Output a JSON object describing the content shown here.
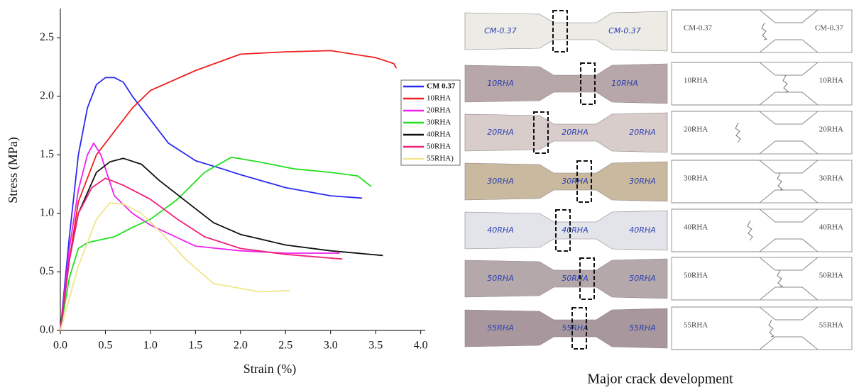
{
  "chart_data": {
    "type": "line",
    "xlabel": "Strain (%)",
    "ylabel": "Stress (MPa)",
    "xlim": [
      0,
      4.05
    ],
    "ylim": [
      0,
      2.75
    ],
    "xticks": [
      {
        "value": 0,
        "label": "0.0"
      },
      {
        "value": 0.5,
        "label": "0.5"
      },
      {
        "value": 1,
        "label": "1.0"
      },
      {
        "value": 1.5,
        "label": "1.5"
      },
      {
        "value": 2,
        "label": "2.0"
      },
      {
        "value": 2.5,
        "label": "2.5"
      },
      {
        "value": 3,
        "label": "3.0"
      },
      {
        "value": 3.5,
        "label": "3.5"
      },
      {
        "value": 4,
        "label": "4.0"
      }
    ],
    "yticks": [
      {
        "value": 0,
        "label": "0.0"
      },
      {
        "value": 0.5,
        "label": "0.5"
      },
      {
        "value": 1,
        "label": "1.0"
      },
      {
        "value": 1.5,
        "label": "1.5"
      },
      {
        "value": 2,
        "label": "2.0"
      },
      {
        "value": 2.5,
        "label": "2.5"
      }
    ],
    "legend": "right",
    "series": [
      {
        "name": "CM 0.37",
        "color": "#2b2bf0",
        "x": [
          0,
          0.1,
          0.2,
          0.3,
          0.4,
          0.5,
          0.6,
          0.7,
          0.8,
          1.0,
          1.2,
          1.5,
          1.8,
          2.0,
          2.5,
          3.0,
          3.35
        ],
        "values": [
          0,
          0.8,
          1.5,
          1.9,
          2.1,
          2.16,
          2.16,
          2.12,
          2.0,
          1.8,
          1.6,
          1.45,
          1.38,
          1.33,
          1.22,
          1.15,
          1.13
        ]
      },
      {
        "name": "10RHA",
        "color": "#f02020",
        "x": [
          0,
          0.1,
          0.2,
          0.4,
          0.6,
          0.8,
          1.0,
          1.5,
          2.0,
          2.5,
          3.0,
          3.5,
          3.7,
          3.73
        ],
        "values": [
          0,
          0.6,
          1.1,
          1.5,
          1.7,
          1.9,
          2.05,
          2.22,
          2.36,
          2.38,
          2.39,
          2.33,
          2.28,
          2.24
        ]
      },
      {
        "name": "20RHA",
        "color": "#f020f0",
        "x": [
          0,
          0.1,
          0.2,
          0.3,
          0.37,
          0.45,
          0.6,
          0.8,
          1.0,
          1.5,
          2.0,
          2.5,
          3.1
        ],
        "values": [
          0,
          0.7,
          1.2,
          1.5,
          1.6,
          1.5,
          1.15,
          1.0,
          0.9,
          0.72,
          0.68,
          0.66,
          0.66
        ]
      },
      {
        "name": "30RHA",
        "color": "#20e020",
        "x": [
          0,
          0.1,
          0.2,
          0.3,
          0.6,
          0.8,
          1.0,
          1.3,
          1.6,
          1.9,
          2.2,
          2.6,
          3.0,
          3.3,
          3.45
        ],
        "values": [
          0,
          0.45,
          0.7,
          0.75,
          0.8,
          0.88,
          0.95,
          1.12,
          1.35,
          1.48,
          1.44,
          1.38,
          1.35,
          1.32,
          1.23
        ]
      },
      {
        "name": "40RHA",
        "color": "#111111",
        "x": [
          0,
          0.1,
          0.2,
          0.4,
          0.55,
          0.7,
          0.9,
          1.1,
          1.4,
          1.7,
          2.0,
          2.5,
          3.0,
          3.58
        ],
        "values": [
          0,
          0.6,
          1.0,
          1.35,
          1.44,
          1.47,
          1.42,
          1.28,
          1.1,
          0.92,
          0.82,
          0.73,
          0.68,
          0.64
        ]
      },
      {
        "name": "50RHA",
        "color": "#f0207a",
        "x": [
          0,
          0.1,
          0.2,
          0.35,
          0.5,
          0.7,
          1.0,
          1.3,
          1.6,
          2.0,
          2.5,
          3.13
        ],
        "values": [
          0,
          0.6,
          1.0,
          1.22,
          1.3,
          1.24,
          1.12,
          0.95,
          0.8,
          0.7,
          0.65,
          0.61
        ]
      },
      {
        "name": "55RHA)",
        "color": "#f0e68c",
        "x": [
          0,
          0.2,
          0.4,
          0.55,
          0.7,
          0.9,
          1.1,
          1.4,
          1.7,
          2.0,
          2.2,
          2.55
        ],
        "values": [
          0,
          0.55,
          0.95,
          1.09,
          1.08,
          1.0,
          0.85,
          0.6,
          0.4,
          0.36,
          0.33,
          0.34
        ]
      }
    ]
  },
  "specimens": {
    "caption": "Major crack development",
    "rows": [
      {
        "photo_labels": [
          "CM-0.37",
          "CM-0.37"
        ],
        "diagram_left": "CM-0.37",
        "diagram_right": "CM-0.37"
      },
      {
        "photo_labels": [
          "10RHA",
          "10RHA"
        ],
        "diagram_left": "10RHA",
        "diagram_right": "10RHA"
      },
      {
        "photo_labels": [
          "20RHA",
          "20RHA",
          "20RHA"
        ],
        "diagram_left": "20RHA",
        "diagram_right": "20RHA"
      },
      {
        "photo_labels": [
          "30RHA",
          "30RHA",
          "30RHA"
        ],
        "diagram_left": "30RHA",
        "diagram_right": "30RHA"
      },
      {
        "photo_labels": [
          "40RHA",
          "40RHA",
          "40RHA"
        ],
        "diagram_left": "40RHA",
        "diagram_right": "40RHA"
      },
      {
        "photo_labels": [
          "50RHA",
          "50RHA",
          "50RHA"
        ],
        "diagram_left": "50RHA",
        "diagram_right": "50RHA"
      },
      {
        "photo_labels": [
          "55RHA",
          "55RHA",
          "55RHA"
        ],
        "diagram_left": "55RHA",
        "diagram_right": "55RHA"
      }
    ]
  }
}
